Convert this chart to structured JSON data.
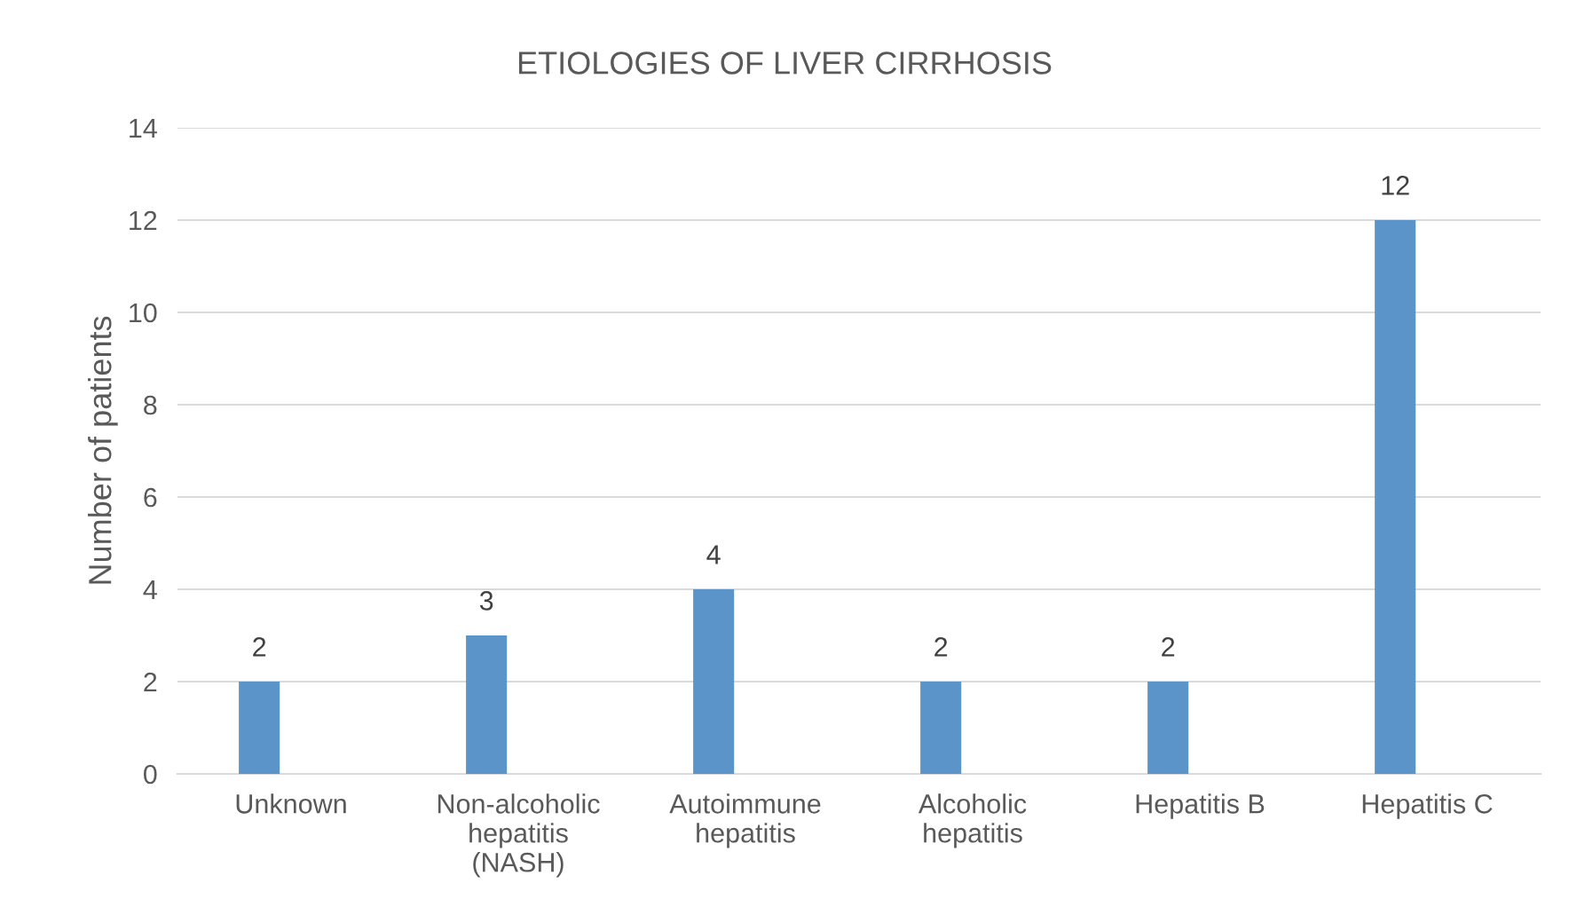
{
  "chart_data": {
    "type": "bar",
    "title": "ETIOLOGIES OF LIVER CIRRHOSIS",
    "ylabel": "Number of patients",
    "categories": [
      "Unknown",
      "Non-alcoholic\nhepatitis\n(NASH)",
      "Autoimmune\nhepatitis",
      "Alcoholic\nhepatitis",
      "Hepatitis B",
      "Hepatitis C"
    ],
    "values": [
      2,
      3,
      4,
      2,
      2,
      12
    ],
    "color": "#5b94c9",
    "ylim": [
      0,
      14
    ],
    "yticks": [
      0,
      2,
      4,
      6,
      8,
      10,
      12,
      14
    ],
    "grid": "y",
    "data_labels": true
  }
}
